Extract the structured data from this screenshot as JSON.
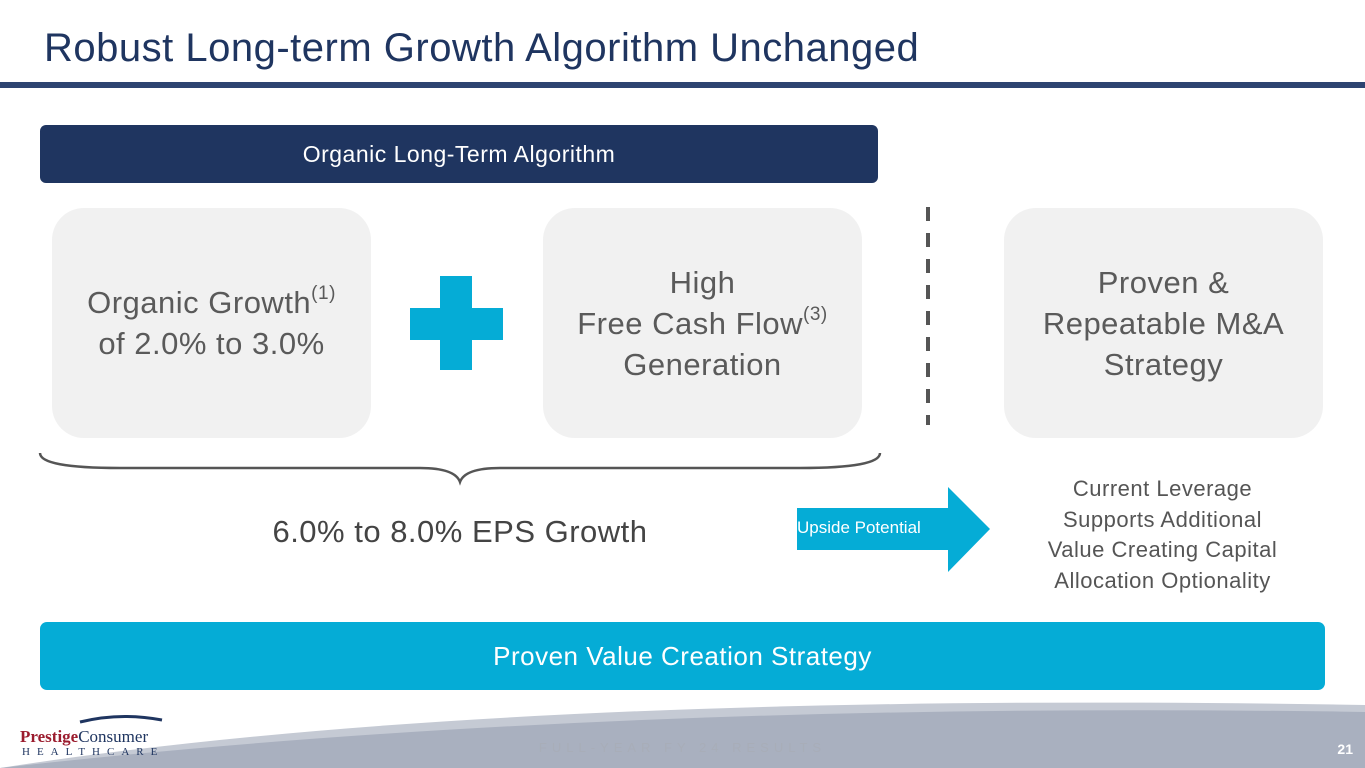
{
  "header": {
    "title": "Robust Long-term Growth Algorithm Unchanged"
  },
  "algorithm": {
    "header": "Organic Long-Term Algorithm",
    "pillars": [
      {
        "lines": [
          "Organic Growth",
          "of 2.0% to 3.0%"
        ],
        "footnote": "(1)"
      },
      {
        "lines": [
          "High",
          "Free Cash Flow",
          "Generation"
        ],
        "footnote": "(3)"
      }
    ],
    "result": "6.0% to 8.0% EPS Growth"
  },
  "mna": {
    "lines": [
      "Proven &",
      "Repeatable M&A",
      "Strategy"
    ]
  },
  "upside": {
    "label": "Upside Potential",
    "lines": [
      "Current Leverage",
      "Supports Additional",
      "Value Creating Capital",
      "Allocation Optionality"
    ]
  },
  "strategy": "Proven Value Creation Strategy",
  "footer": {
    "logo": [
      "Prestige",
      "Consumer",
      "HEALTHCARE"
    ],
    "text": "FULL-YEAR FY 24 RESULTS",
    "page": "21"
  }
}
